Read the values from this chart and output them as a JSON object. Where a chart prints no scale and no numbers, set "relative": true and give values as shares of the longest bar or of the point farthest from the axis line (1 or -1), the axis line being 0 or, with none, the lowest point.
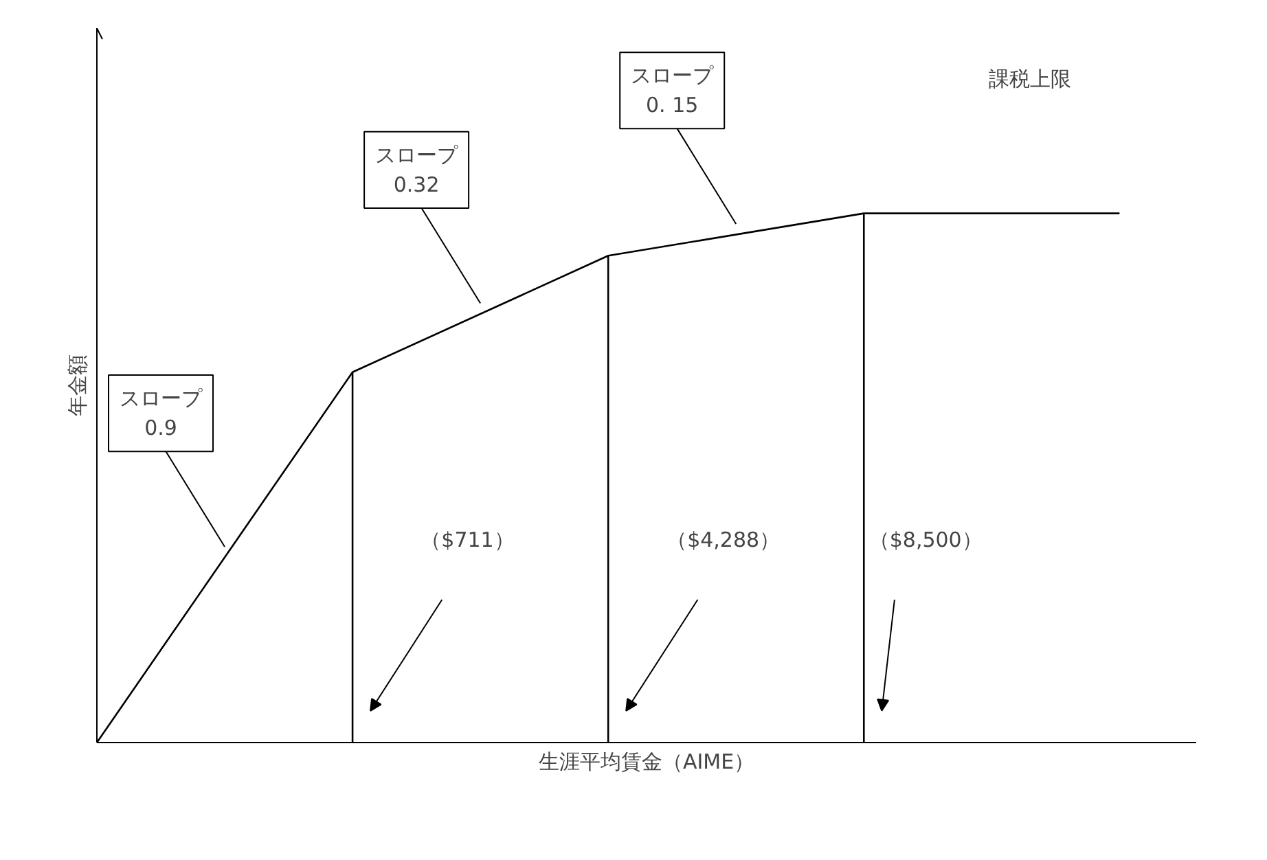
{
  "chart_data": {
    "type": "line",
    "relative": true,
    "xlabel": "生涯平均賃金（AIME）",
    "ylabel": "年金額",
    "categories": [
      null,
      null,
      null,
      null,
      null
    ],
    "series": [
      {
        "color": "#000000",
        "values": [
          0,
          0.7,
          0.92,
          1.0,
          1.0
        ]
      }
    ],
    "annotations": [
      "スロープ\n0.9",
      "スロープ\n0.32",
      "スロープ\n0. 15",
      "課税上限",
      "（$711）",
      "（$4,288）",
      "（$8,500）"
    ]
  }
}
